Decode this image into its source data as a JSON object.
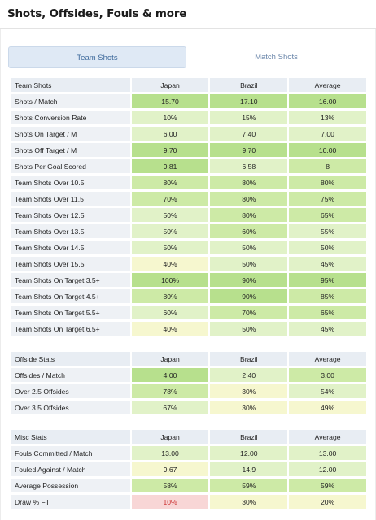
{
  "header": {
    "title": "Shots, Offsides, Fouls & more"
  },
  "tabs": [
    {
      "label": "Team Shots",
      "active": true
    },
    {
      "label": "Match Shots",
      "active": false
    }
  ],
  "team_shots": {
    "headers": [
      "Team Shots",
      "Japan",
      "Brazil",
      "Average"
    ],
    "rows": [
      {
        "label": "Shots / Match",
        "japan": "15.70",
        "brazil": "17.10",
        "average": "16.00"
      },
      {
        "label": "Shots Conversion Rate",
        "japan": "10%",
        "brazil": "15%",
        "average": "13%"
      },
      {
        "label": "Shots On Target / M",
        "japan": "6.00",
        "brazil": "7.40",
        "average": "7.00"
      },
      {
        "label": "Shots Off Target / M",
        "japan": "9.70",
        "brazil": "9.70",
        "average": "10.00"
      },
      {
        "label": "Shots Per Goal Scored",
        "japan": "9.81",
        "brazil": "6.58",
        "average": "8"
      },
      {
        "label": "Team Shots Over 10.5",
        "japan": "80%",
        "brazil": "80%",
        "average": "80%"
      },
      {
        "label": "Team Shots Over 11.5",
        "japan": "70%",
        "brazil": "80%",
        "average": "75%"
      },
      {
        "label": "Team Shots Over 12.5",
        "japan": "50%",
        "brazil": "80%",
        "average": "65%"
      },
      {
        "label": "Team Shots Over 13.5",
        "japan": "50%",
        "brazil": "60%",
        "average": "55%"
      },
      {
        "label": "Team Shots Over 14.5",
        "japan": "50%",
        "brazil": "50%",
        "average": "50%"
      },
      {
        "label": "Team Shots Over 15.5",
        "japan": "40%",
        "brazil": "50%",
        "average": "45%"
      },
      {
        "label": "Team Shots On Target 3.5+",
        "japan": "100%",
        "brazil": "90%",
        "average": "95%"
      },
      {
        "label": "Team Shots On Target 4.5+",
        "japan": "80%",
        "brazil": "90%",
        "average": "85%"
      },
      {
        "label": "Team Shots On Target 5.5+",
        "japan": "60%",
        "brazil": "70%",
        "average": "65%"
      },
      {
        "label": "Team Shots On Target 6.5+",
        "japan": "40%",
        "brazil": "50%",
        "average": "45%"
      }
    ]
  },
  "offside_stats": {
    "headers": [
      "Offside Stats",
      "Japan",
      "Brazil",
      "Average"
    ],
    "rows": [
      {
        "label": "Offsides / Match",
        "japan": "4.00",
        "brazil": "2.40",
        "average": "3.00"
      },
      {
        "label": "Over 2.5 Offsides",
        "japan": "78%",
        "brazil": "30%",
        "average": "54%"
      },
      {
        "label": "Over 3.5 Offsides",
        "japan": "67%",
        "brazil": "30%",
        "average": "49%"
      }
    ]
  },
  "misc_stats": {
    "headers": [
      "Misc Stats",
      "Japan",
      "Brazil",
      "Average"
    ],
    "rows": [
      {
        "label": "Fouls Committed / Match",
        "japan": "13.00",
        "brazil": "12.00",
        "average": "13.00"
      },
      {
        "label": "Fouled Against / Match",
        "japan": "9.67",
        "brazil": "14.9",
        "average": "12.00"
      },
      {
        "label": "Average Possession",
        "japan": "58%",
        "brazil": "59%",
        "average": "59%"
      },
      {
        "label": "Draw % FT",
        "japan": "10%",
        "brazil": "30%",
        "average": "20%"
      }
    ]
  },
  "colors": {
    "strong_green": "#b7e08d",
    "mid_green": "#cdeaa6",
    "light_green": "#e1f2c8",
    "pale_yellow": "#f6f7cf",
    "pale_red": "#f8d6d6"
  }
}
